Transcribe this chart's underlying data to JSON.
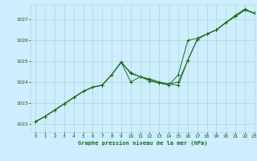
{
  "title": "Graphe pression niveau de la mer (hPa)",
  "background_color": "#cceeff",
  "grid_color": "#b0d8c8",
  "line_color": "#1a6b1a",
  "xlim": [
    -0.5,
    23
  ],
  "ylim": [
    1021.6,
    1027.7
  ],
  "yticks": [
    1022,
    1023,
    1024,
    1025,
    1026,
    1027
  ],
  "xticks": [
    0,
    1,
    2,
    3,
    4,
    5,
    6,
    7,
    8,
    9,
    10,
    11,
    12,
    13,
    14,
    15,
    16,
    17,
    18,
    19,
    20,
    21,
    22,
    23
  ],
  "series1_x": [
    0,
    1,
    2,
    3,
    4,
    5,
    6,
    7,
    8,
    9,
    10,
    11,
    12,
    13,
    14,
    15,
    16,
    17,
    18,
    19,
    20,
    21,
    22,
    23
  ],
  "series1_y": [
    1022.1,
    1022.35,
    1022.65,
    1022.95,
    1023.25,
    1023.55,
    1023.75,
    1023.85,
    1024.35,
    1024.95,
    1024.4,
    1024.25,
    1024.15,
    1024.0,
    1023.9,
    1023.85,
    1025.05,
    1026.05,
    1026.3,
    1026.5,
    1026.85,
    1027.15,
    1027.45,
    1027.3
  ],
  "series2_x": [
    0,
    1,
    2,
    3,
    4,
    5,
    6,
    7,
    8,
    9,
    10,
    11,
    12,
    13,
    14,
    15,
    16,
    17,
    18,
    19,
    20,
    21,
    22,
    23
  ],
  "series2_y": [
    1022.1,
    1022.35,
    1022.65,
    1022.95,
    1023.25,
    1023.55,
    1023.75,
    1023.85,
    1024.35,
    1024.95,
    1024.45,
    1024.25,
    1024.1,
    1023.95,
    1023.85,
    1024.35,
    1026.0,
    1026.1,
    1026.3,
    1026.5,
    1026.85,
    1027.15,
    1027.45,
    1027.3
  ],
  "series3_x": [
    0,
    1,
    2,
    3,
    4,
    5,
    6,
    7,
    8,
    9,
    10,
    11,
    12,
    13,
    14,
    15,
    16,
    17,
    18,
    19,
    20,
    21,
    22,
    23
  ],
  "series3_y": [
    1022.1,
    1022.35,
    1022.65,
    1022.95,
    1023.25,
    1023.55,
    1023.75,
    1023.85,
    1024.35,
    1024.95,
    1024.0,
    1024.25,
    1024.05,
    1023.95,
    1023.9,
    1024.0,
    1025.05,
    1026.05,
    1026.3,
    1026.5,
    1026.85,
    1027.2,
    1027.5,
    1027.3
  ]
}
